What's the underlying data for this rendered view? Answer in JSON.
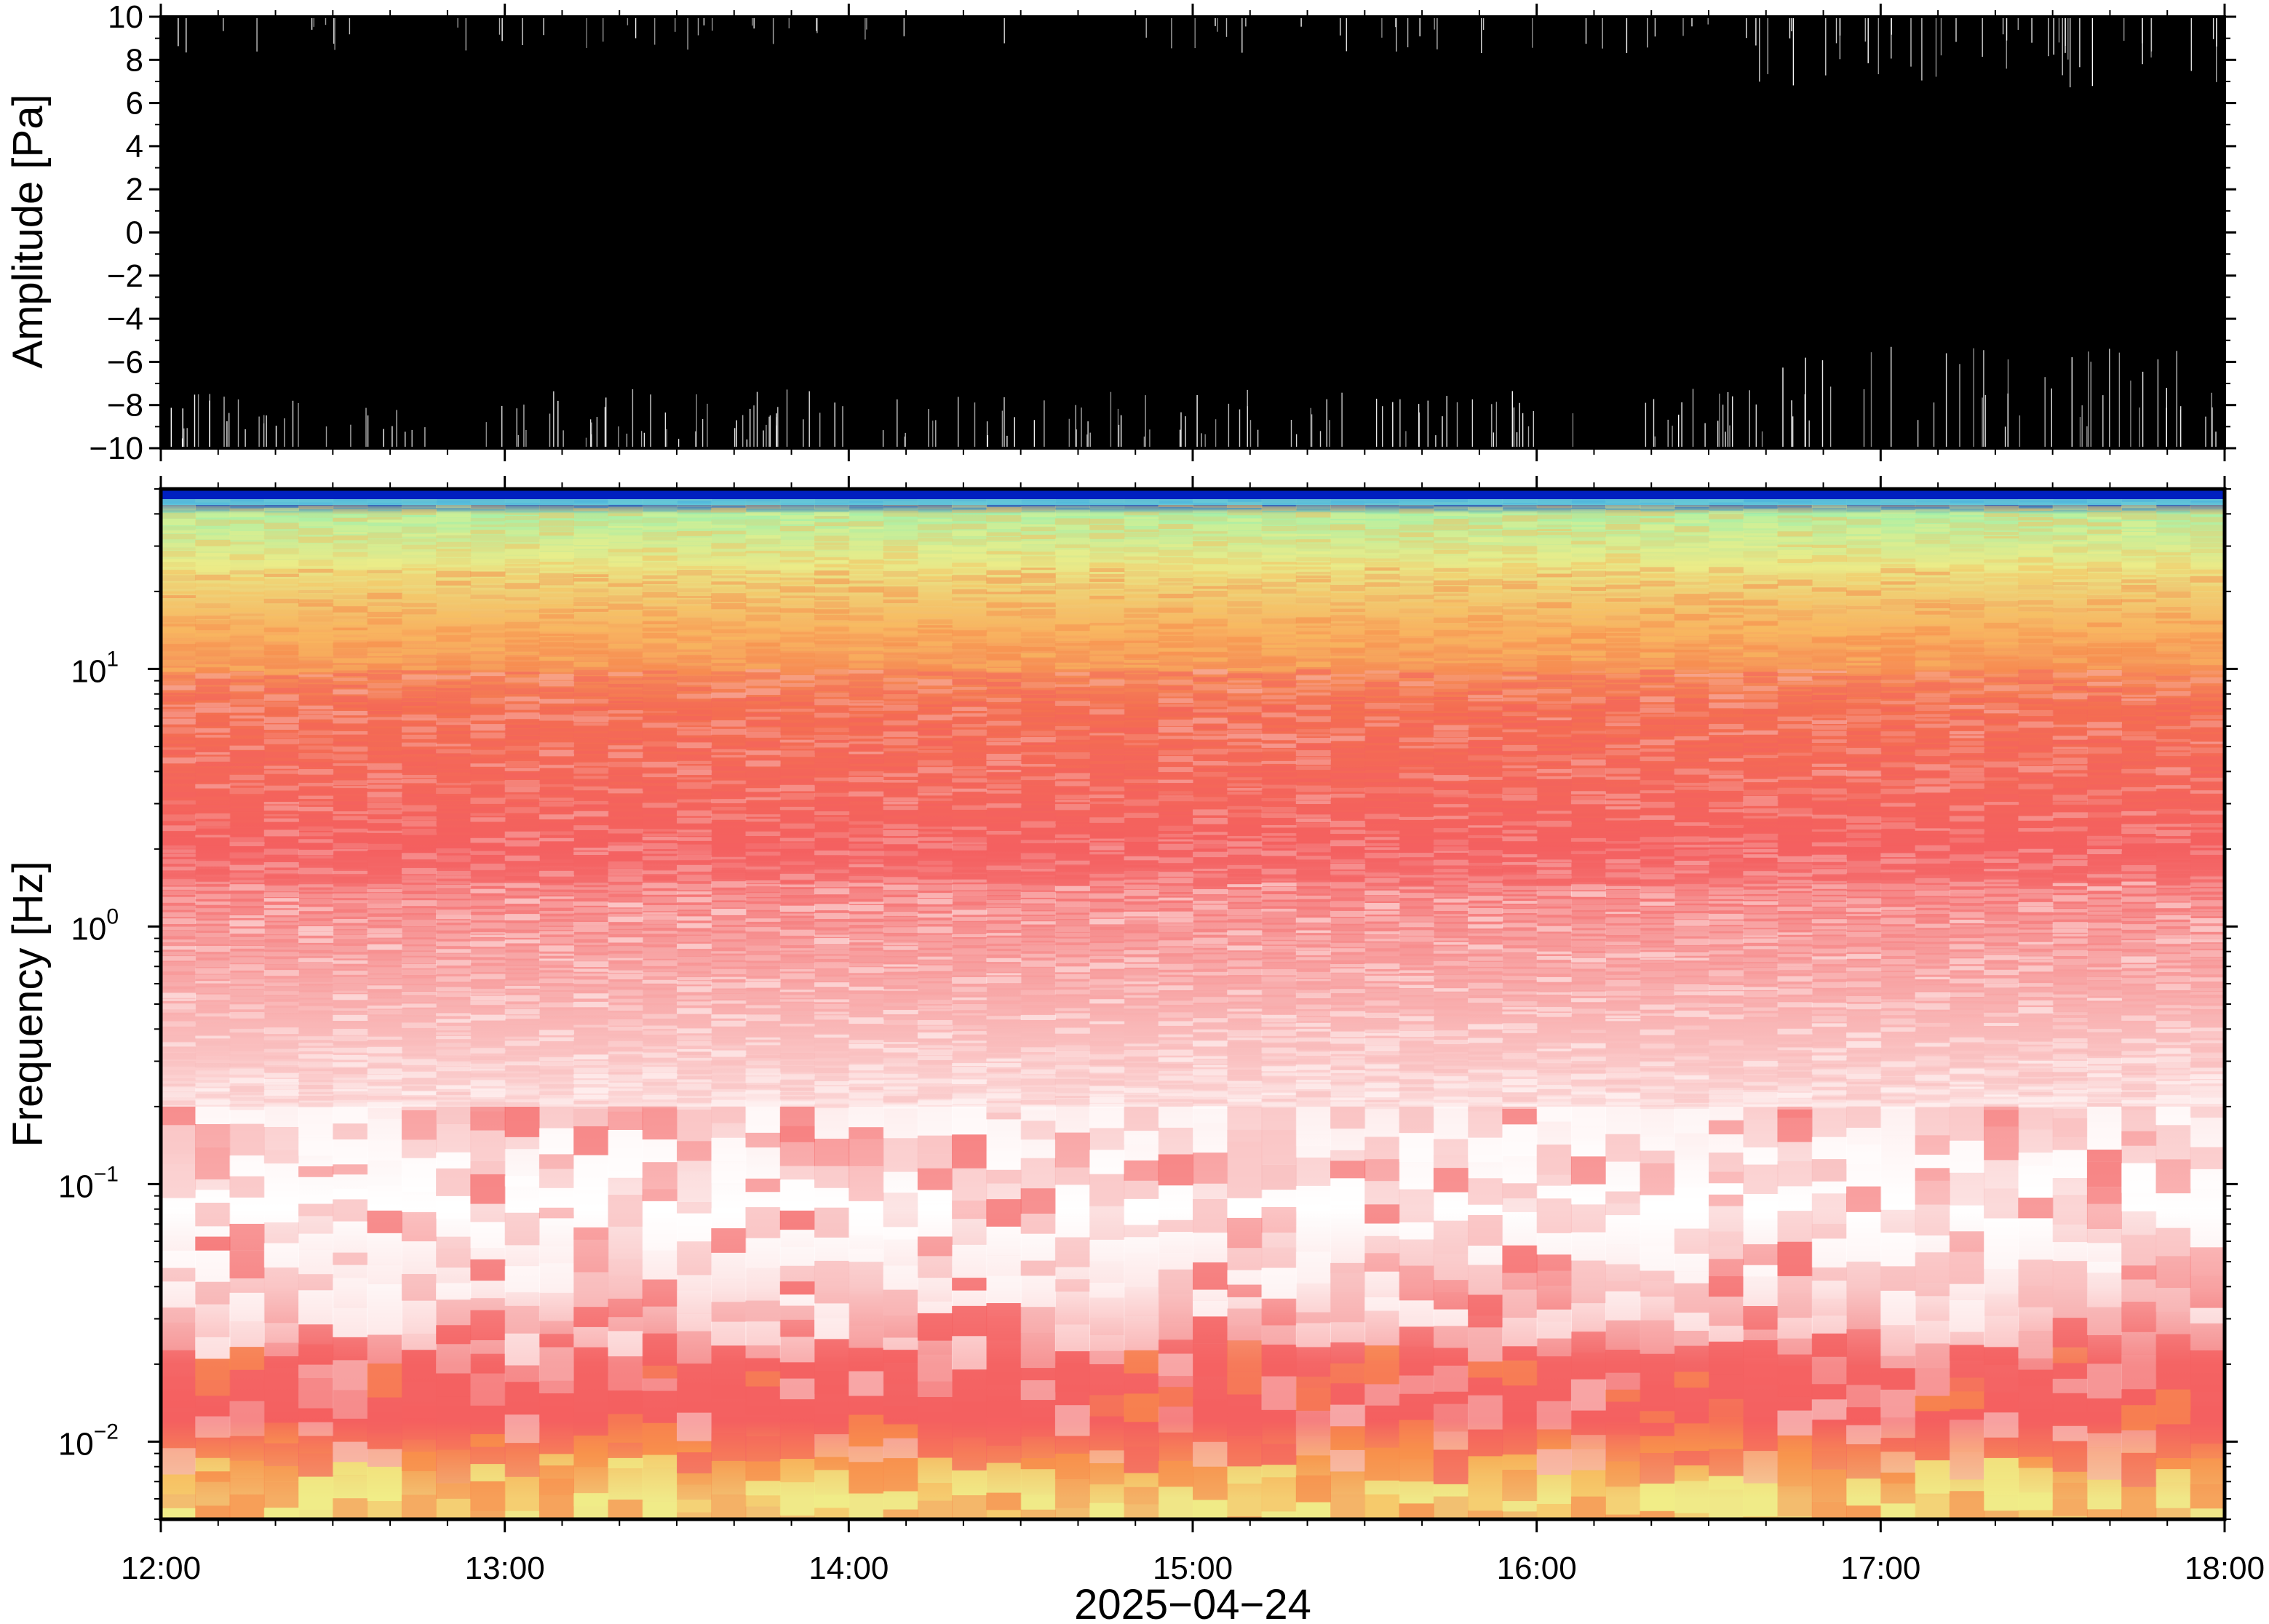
{
  "chart_data": [
    {
      "type": "line",
      "name": "waveform",
      "ylabel": "Amplitude [Pa]",
      "ylim": [
        -10,
        10
      ],
      "yticks": [
        "10",
        "8",
        "6",
        "4",
        "2",
        "0",
        "−2",
        "−4",
        "−6",
        "−8",
        "−10"
      ],
      "ytick_values": [
        10,
        8,
        6,
        4,
        2,
        0,
        -2,
        -4,
        -6,
        -8,
        -10
      ],
      "xlim": [
        "2025-04-24 12:00",
        "2025-04-24 18:00"
      ],
      "trace_color": "#000000",
      "note_saturated": "trace exceeds the ±10 Pa range almost everywhere"
    },
    {
      "type": "heatmap",
      "name": "spectrogram",
      "ylabel": "Frequency [Hz]",
      "yscale": "log",
      "ylim": [
        0.005,
        50
      ],
      "yticks": [
        {
          "base": "10",
          "exp": "1",
          "value": 10
        },
        {
          "base": "10",
          "exp": "0",
          "value": 1
        },
        {
          "base": "10",
          "exp": "−1",
          "value": 0.1
        },
        {
          "base": "10",
          "exp": "−2",
          "value": 0.01
        }
      ],
      "xlim": [
        "2025-04-24 12:00",
        "2025-04-24 18:00"
      ],
      "colormap": [
        "#ffffff",
        "#f8b8b8",
        "#f46060",
        "#f88a4a",
        "#f8c060",
        "#f0f088",
        "#b0f0a0",
        "#60d0e0",
        "#0020c0"
      ],
      "band_profile": [
        {
          "freq": 45,
          "color": "#0020c0"
        },
        {
          "freq": 40,
          "color": "#a8f0a8"
        },
        {
          "freq": 25,
          "color": "#e8e888"
        },
        {
          "freq": 14,
          "color": "#f8b060"
        },
        {
          "freq": 7,
          "color": "#f47050"
        },
        {
          "freq": 2,
          "color": "#f46060"
        },
        {
          "freq": 0.6,
          "color": "#f8a0a0"
        },
        {
          "freq": 0.2,
          "color": "#fde0e0"
        },
        {
          "freq": 0.08,
          "color": "#ffffff"
        },
        {
          "freq": 0.04,
          "color": "#fbd0d0"
        },
        {
          "freq": 0.02,
          "color": "#f46a6a"
        },
        {
          "freq": 0.012,
          "color": "#f46060"
        },
        {
          "freq": 0.009,
          "color": "#f8a050"
        },
        {
          "freq": 0.006,
          "color": "#f0e088"
        }
      ]
    }
  ],
  "x_axis": {
    "ticks": [
      "12:00",
      "13:00",
      "14:00",
      "15:00",
      "16:00",
      "17:00",
      "18:00"
    ],
    "date_label": "2025−04−24"
  }
}
